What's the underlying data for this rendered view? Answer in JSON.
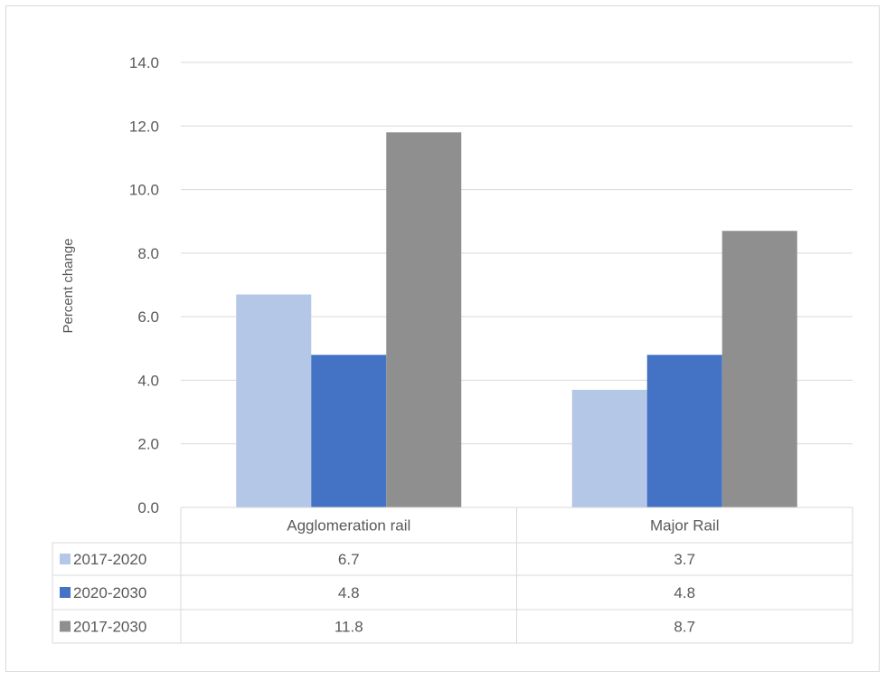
{
  "chart_data": {
    "type": "bar",
    "title": "",
    "xlabel": "",
    "ylabel": "Percent change",
    "ylim": [
      0,
      14
    ],
    "yticks": [
      "0.0",
      "2.0",
      "4.0",
      "6.0",
      "8.0",
      "10.0",
      "12.0",
      "14.0"
    ],
    "grid": true,
    "legend": "data-table",
    "categories": [
      "Agglomeration rail",
      "Major Rail"
    ],
    "series": [
      {
        "name": "2017-2020",
        "color": "#b4c7e7",
        "values": [
          6.7,
          3.7
        ],
        "labels": [
          "6.7",
          "3.7"
        ]
      },
      {
        "name": "2020-2030",
        "color": "#4472c4",
        "values": [
          4.8,
          4.8
        ],
        "labels": [
          "4.8",
          "4.8"
        ]
      },
      {
        "name": "2017-2030",
        "color": "#8f8f8f",
        "values": [
          11.8,
          8.7
        ],
        "labels": [
          "11.8",
          "8.7"
        ]
      }
    ]
  }
}
